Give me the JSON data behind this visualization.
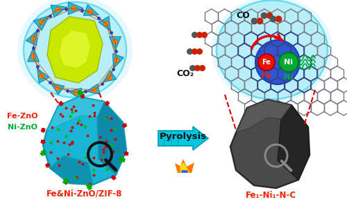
{
  "bg_color": "#ffffff",
  "zif8_label": "Fe&Ni-ZnO/ZIF-8",
  "product_label": "Fe₁-Ni₁-N-C",
  "pyrolysis_label": "Pyrolysis",
  "fe_zno_label": "Fe-ZnO",
  "ni_zno_label": "Ni-ZnO",
  "co_label": "CO",
  "co2_label": "CO₂",
  "fe_label": "Fe",
  "ni_label": "Ni",
  "cyan_bubble": "#b8eef8",
  "cyan_bubble_edge": "#66ddee",
  "zif8_main": "#1ab4d4",
  "zif8_dark": "#0d8aaa",
  "zif8_light": "#4acde8",
  "carbon_main": "#4a4a4a",
  "carbon_dark": "#252525",
  "carbon_mid": "#383838",
  "carbon_light": "#606060",
  "arrow_fill": "#00c8e0",
  "arrow_edge": "#0099bb",
  "fe_atom": "#ee2200",
  "ni_atom": "#00aa33",
  "red_dot": "#cc0000",
  "green_dot": "#00bb00",
  "dashed_color": "#dd0000",
  "mag_color": "#111111",
  "white": "#ffffff",
  "lattice_color": "#8888aa",
  "blue_ring": "#2244cc",
  "graphite_lattice": "#777788"
}
